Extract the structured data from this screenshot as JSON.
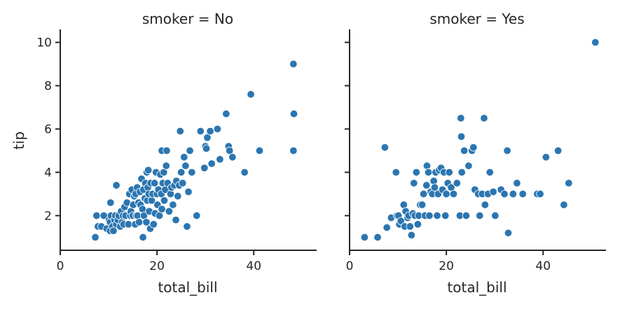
{
  "colors": {
    "marker": "#2b76b1",
    "marker_edge": "#ffffff",
    "axis": "#262626"
  },
  "chart_data": [
    {
      "type": "scatter",
      "title": "smoker = No",
      "xlabel": "total_bill",
      "ylabel": "tip",
      "xlim": [
        0,
        53
      ],
      "ylim": [
        0.4,
        10.6
      ],
      "xticks": [
        0,
        20,
        40
      ],
      "yticks": [
        2,
        4,
        6,
        8,
        10
      ],
      "grid": false,
      "points": [
        [
          7.25,
          1.0
        ],
        [
          7.5,
          2.0
        ],
        [
          7.8,
          1.5
        ],
        [
          8.5,
          1.5
        ],
        [
          9.0,
          2.0
        ],
        [
          9.6,
          1.4
        ],
        [
          10.1,
          1.8
        ],
        [
          10.3,
          1.7
        ],
        [
          10.5,
          2.0
        ],
        [
          10.4,
          2.6
        ],
        [
          10.3,
          1.3
        ],
        [
          10.8,
          1.5
        ],
        [
          11.0,
          1.3
        ],
        [
          11.2,
          1.8
        ],
        [
          11.4,
          2.0
        ],
        [
          11.6,
          1.6
        ],
        [
          11.9,
          1.8
        ],
        [
          12.1,
          2.0
        ],
        [
          11.6,
          3.4
        ],
        [
          12.4,
          1.5
        ],
        [
          12.6,
          2.2
        ],
        [
          12.8,
          1.7
        ],
        [
          13.0,
          2.0
        ],
        [
          13.1,
          1.6
        ],
        [
          13.3,
          2.4
        ],
        [
          13.5,
          2.0
        ],
        [
          13.8,
          2.6
        ],
        [
          14.1,
          1.6
        ],
        [
          14.3,
          3.0
        ],
        [
          14.5,
          2.0
        ],
        [
          14.6,
          2.2
        ],
        [
          14.8,
          3.2
        ],
        [
          15.0,
          2.0
        ],
        [
          15.1,
          2.5
        ],
        [
          15.3,
          2.9
        ],
        [
          15.5,
          1.6
        ],
        [
          15.6,
          3.0
        ],
        [
          15.7,
          2.0
        ],
        [
          15.9,
          3.3
        ],
        [
          16.0,
          2.0
        ],
        [
          16.2,
          2.6
        ],
        [
          16.3,
          1.7
        ],
        [
          16.5,
          3.1
        ],
        [
          16.6,
          2.5
        ],
        [
          16.8,
          3.7
        ],
        [
          17.0,
          2.3
        ],
        [
          17.1,
          1.0
        ],
        [
          17.2,
          3.2
        ],
        [
          17.3,
          2.0
        ],
        [
          17.5,
          2.8
        ],
        [
          17.6,
          3.5
        ],
        [
          17.8,
          1.7
        ],
        [
          17.9,
          4.0
        ],
        [
          18.0,
          2.7
        ],
        [
          18.1,
          3.3
        ],
        [
          18.2,
          4.1
        ],
        [
          18.3,
          3.0
        ],
        [
          18.4,
          2.2
        ],
        [
          18.6,
          1.4
        ],
        [
          18.7,
          3.5
        ],
        [
          18.9,
          2.7
        ],
        [
          19.1,
          3.0
        ],
        [
          19.3,
          1.6
        ],
        [
          19.5,
          3.5
        ],
        [
          19.6,
          2.1
        ],
        [
          19.8,
          4.0
        ],
        [
          20.0,
          3.0
        ],
        [
          20.1,
          2.5
        ],
        [
          20.3,
          3.2
        ],
        [
          20.5,
          2.0
        ],
        [
          20.7,
          3.9
        ],
        [
          20.9,
          3.0
        ],
        [
          21.0,
          2.3
        ],
        [
          21.0,
          5.0
        ],
        [
          21.2,
          3.5
        ],
        [
          21.4,
          4.0
        ],
        [
          21.5,
          2.7
        ],
        [
          21.7,
          3.2
        ],
        [
          21.9,
          4.3
        ],
        [
          22.0,
          5.0
        ],
        [
          22.2,
          3.5
        ],
        [
          22.5,
          2.2
        ],
        [
          22.8,
          3.0
        ],
        [
          23.0,
          3.3
        ],
        [
          23.3,
          2.5
        ],
        [
          23.6,
          3.4
        ],
        [
          23.9,
          1.8
        ],
        [
          24.0,
          3.6
        ],
        [
          24.3,
          2.9
        ],
        [
          24.6,
          3.4
        ],
        [
          24.8,
          5.9
        ],
        [
          25.0,
          4.0
        ],
        [
          25.3,
          3.5
        ],
        [
          25.6,
          4.7
        ],
        [
          25.9,
          4.3
        ],
        [
          26.2,
          1.5
        ],
        [
          26.5,
          3.1
        ],
        [
          26.8,
          5.0
        ],
        [
          27.2,
          4.0
        ],
        [
          28.2,
          2.0
        ],
        [
          29.0,
          5.9
        ],
        [
          29.8,
          4.2
        ],
        [
          30.0,
          5.2
        ],
        [
          30.2,
          5.1
        ],
        [
          30.4,
          5.6
        ],
        [
          31.0,
          5.9
        ],
        [
          31.3,
          4.4
        ],
        [
          32.5,
          6.0
        ],
        [
          33.0,
          4.6
        ],
        [
          34.3,
          6.7
        ],
        [
          34.8,
          5.2
        ],
        [
          35.0,
          5.0
        ],
        [
          35.6,
          4.7
        ],
        [
          38.1,
          4.0
        ],
        [
          39.4,
          7.6
        ],
        [
          41.2,
          5.0
        ],
        [
          48.2,
          9.0
        ],
        [
          48.3,
          6.7
        ],
        [
          48.2,
          5.0
        ]
      ]
    },
    {
      "type": "scatter",
      "title": "smoker = Yes",
      "xlabel": "total_bill",
      "ylabel": "",
      "xlim": [
        0,
        53
      ],
      "ylim": [
        0.4,
        10.6
      ],
      "xticks": [
        0,
        20,
        40
      ],
      "yticks": [
        2,
        4,
        6,
        8,
        10
      ],
      "grid": false,
      "points": [
        [
          3.1,
          1.0
        ],
        [
          5.8,
          1.0
        ],
        [
          7.3,
          5.15
        ],
        [
          7.7,
          1.45
        ],
        [
          8.6,
          1.9
        ],
        [
          9.6,
          4.0
        ],
        [
          9.8,
          2.0
        ],
        [
          10.1,
          2.0
        ],
        [
          10.3,
          1.6
        ],
        [
          10.6,
          1.75
        ],
        [
          11.2,
          2.5
        ],
        [
          11.4,
          1.5
        ],
        [
          11.6,
          2.2
        ],
        [
          12.0,
          1.9
        ],
        [
          12.2,
          2.0
        ],
        [
          12.5,
          1.5
        ],
        [
          12.8,
          1.1
        ],
        [
          13.1,
          2.1
        ],
        [
          13.3,
          3.5
        ],
        [
          13.5,
          2.0
        ],
        [
          13.8,
          4.0
        ],
        [
          14.1,
          1.6
        ],
        [
          14.3,
          2.0
        ],
        [
          14.6,
          2.5
        ],
        [
          15.0,
          2.5
        ],
        [
          15.3,
          3.0
        ],
        [
          15.6,
          2.0
        ],
        [
          15.9,
          3.4
        ],
        [
          16.0,
          4.3
        ],
        [
          16.3,
          4.0
        ],
        [
          16.5,
          2.0
        ],
        [
          16.8,
          3.1
        ],
        [
          17.1,
          3.0
        ],
        [
          17.4,
          3.6
        ],
        [
          17.6,
          3.3
        ],
        [
          17.8,
          4.0
        ],
        [
          18.1,
          2.0
        ],
        [
          18.3,
          3.0
        ],
        [
          18.5,
          4.1
        ],
        [
          18.9,
          4.2
        ],
        [
          19.2,
          3.2
        ],
        [
          19.5,
          4.0
        ],
        [
          19.8,
          2.0
        ],
        [
          20.0,
          3.0
        ],
        [
          20.3,
          3.5
        ],
        [
          20.6,
          4.0
        ],
        [
          21.0,
          3.3
        ],
        [
          21.5,
          3.0
        ],
        [
          22.2,
          3.5
        ],
        [
          22.8,
          2.0
        ],
        [
          23.0,
          6.5
        ],
        [
          23.1,
          5.65
        ],
        [
          23.2,
          4.0
        ],
        [
          23.7,
          5.0
        ],
        [
          24.1,
          2.0
        ],
        [
          24.6,
          4.3
        ],
        [
          25.3,
          5.0
        ],
        [
          25.6,
          5.15
        ],
        [
          25.9,
          3.2
        ],
        [
          26.6,
          3.0
        ],
        [
          26.9,
          2.0
        ],
        [
          27.4,
          3.0
        ],
        [
          27.8,
          6.5
        ],
        [
          28.0,
          2.5
        ],
        [
          28.6,
          3.0
        ],
        [
          29.0,
          4.0
        ],
        [
          29.7,
          3.1
        ],
        [
          30.1,
          2.0
        ],
        [
          31.3,
          3.2
        ],
        [
          32.0,
          3.0
        ],
        [
          32.6,
          5.0
        ],
        [
          32.8,
          1.2
        ],
        [
          33.8,
          3.0
        ],
        [
          34.6,
          3.5
        ],
        [
          35.8,
          3.0
        ],
        [
          38.8,
          3.0
        ],
        [
          39.4,
          3.0
        ],
        [
          40.6,
          4.7
        ],
        [
          43.1,
          5.0
        ],
        [
          44.3,
          2.5
        ],
        [
          45.3,
          3.5
        ],
        [
          50.8,
          10.0
        ]
      ]
    }
  ]
}
